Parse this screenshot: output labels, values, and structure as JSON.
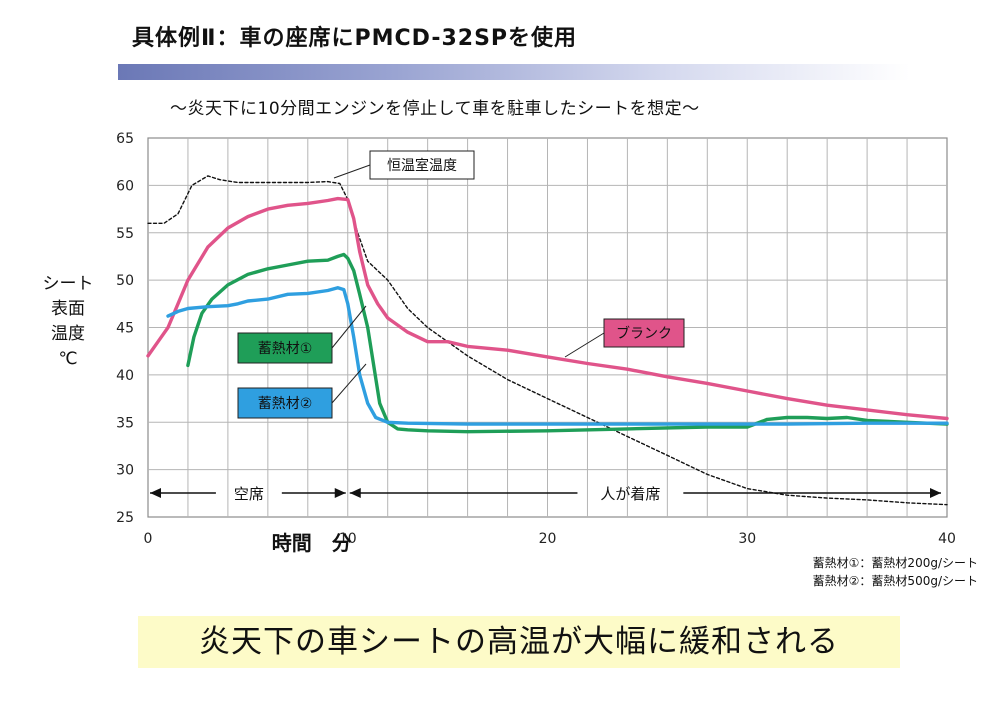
{
  "header": {
    "title": "具体例Ⅱ：車の座席にPMCD-32SPを使用",
    "subtitle": "～炎天下に10分間エンジンを停止して車を駐車したシートを想定～"
  },
  "colors": {
    "accent_band": "#6b78b6",
    "blank": "#e0548a",
    "pcm1": "#1f9e58",
    "pcm2": "#2f9fe0",
    "room": "#111111",
    "conclusion_bg": "#fdfbc8"
  },
  "chart_data": {
    "type": "line",
    "ylabel": "シート表面温度℃",
    "ylabel_lines": [
      "シート",
      "表面",
      "温度",
      "℃"
    ],
    "xlabel": "時間　分",
    "xlim": [
      0,
      40
    ],
    "ylim": [
      25,
      65
    ],
    "xticks": [
      0,
      10,
      20,
      30,
      40
    ],
    "yticks": [
      25,
      30,
      35,
      40,
      45,
      50,
      55,
      60,
      65
    ],
    "grid": true,
    "series": [
      {
        "name": "恒温室温度",
        "style": "dashed",
        "x": [
          0,
          0.8,
          1.5,
          2.2,
          3,
          3.6,
          4.5,
          6,
          8,
          9,
          9.6,
          10,
          10.5,
          11,
          12,
          13,
          14,
          16,
          18,
          20,
          22,
          24,
          26,
          28,
          30,
          32,
          34,
          36,
          38,
          40
        ],
        "y": [
          56,
          56,
          57,
          60,
          61,
          60.6,
          60.3,
          60.3,
          60.3,
          60.4,
          60.2,
          58.5,
          55,
          52,
          50,
          47,
          45,
          42,
          39.5,
          37.5,
          35.5,
          33.5,
          31.5,
          29.5,
          28,
          27.3,
          27,
          26.8,
          26.5,
          26.3
        ]
      },
      {
        "name": "ブランク",
        "x": [
          0,
          0.5,
          1,
          1.5,
          2,
          3,
          4,
          5,
          6,
          7,
          8,
          9,
          9.5,
          10,
          10.3,
          10.6,
          11,
          11.5,
          12,
          13,
          14,
          15,
          16,
          18,
          20,
          22,
          24,
          26,
          28,
          30,
          32,
          34,
          36,
          38,
          40
        ],
        "y": [
          42,
          43.5,
          45,
          47.5,
          50,
          53.5,
          55.5,
          56.7,
          57.5,
          57.9,
          58.1,
          58.4,
          58.6,
          58.5,
          56.5,
          53,
          49.5,
          47.5,
          46,
          44.5,
          43.5,
          43.5,
          43,
          42.6,
          41.9,
          41.2,
          40.6,
          39.8,
          39.1,
          38.3,
          37.5,
          36.8,
          36.3,
          35.8,
          35.4
        ]
      },
      {
        "name": "蓄熱材①",
        "x": [
          2,
          2.3,
          2.7,
          3.2,
          4,
          5,
          6,
          7,
          8,
          9,
          9.5,
          9.8,
          10,
          10.3,
          10.6,
          11,
          11.3,
          11.6,
          12,
          12.5,
          13,
          14,
          16,
          20,
          24,
          28,
          30,
          31,
          32,
          33,
          34,
          35,
          36,
          38,
          40
        ],
        "y": [
          41,
          44,
          46.5,
          48,
          49.5,
          50.6,
          51.2,
          51.6,
          52,
          52.1,
          52.5,
          52.7,
          52.3,
          51,
          48.5,
          45,
          41,
          37,
          35,
          34.3,
          34.2,
          34.1,
          34,
          34.1,
          34.3,
          34.5,
          34.5,
          35.3,
          35.5,
          35.5,
          35.4,
          35.5,
          35.2,
          35,
          34.8
        ]
      },
      {
        "name": "蓄熱材②",
        "x": [
          1,
          1.5,
          2,
          3,
          4,
          4.5,
          5,
          6,
          7,
          8,
          9,
          9.5,
          9.8,
          10,
          10.3,
          10.6,
          11,
          11.4,
          12,
          13,
          16,
          20,
          24,
          28,
          32,
          36,
          40
        ],
        "y": [
          46.2,
          46.7,
          47,
          47.2,
          47.3,
          47.5,
          47.8,
          48,
          48.5,
          48.6,
          48.9,
          49.2,
          49,
          47.5,
          44,
          40,
          37,
          35.5,
          35,
          34.9,
          34.8,
          34.8,
          34.8,
          34.8,
          34.8,
          34.9,
          34.9
        ]
      }
    ],
    "annotations": {
      "room_label": "恒温室温度",
      "blank_label": "ブランク",
      "pcm1_label": "蓄熱材①",
      "pcm2_label": "蓄熱材②",
      "phase_empty": "空席",
      "phase_seated": "人が着席",
      "phase_boundary_x": 10
    }
  },
  "notes": {
    "note1": "蓄熱材①：蓄熱材200g/シート",
    "note2": "蓄熱材②：蓄熱材500g/シート"
  },
  "conclusion": "炎天下の車シートの高温が大幅に緩和される"
}
